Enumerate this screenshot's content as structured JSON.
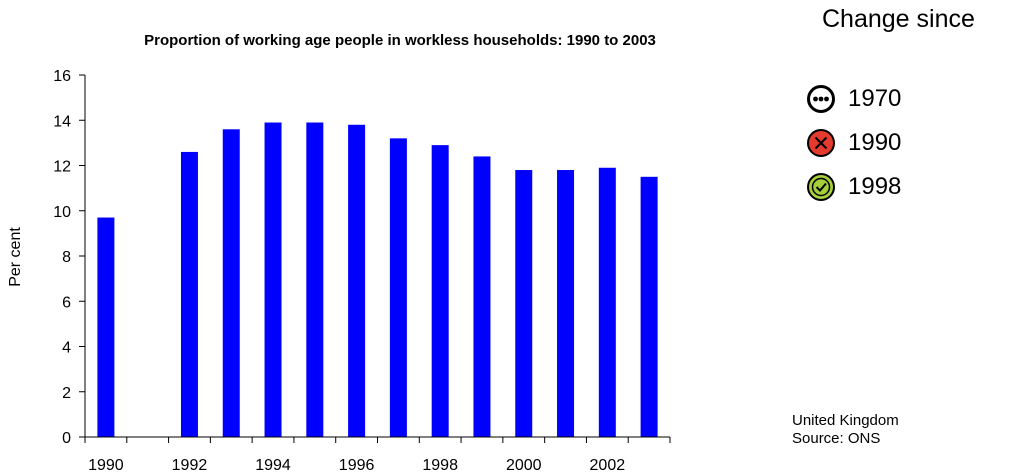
{
  "chart_data": {
    "type": "bar",
    "title": "Proportion of working age people in workless households: 1990 to 2003",
    "xlabel": "",
    "ylabel": "Per cent",
    "ylim": [
      0,
      16
    ],
    "yticks": [
      0,
      2,
      4,
      6,
      8,
      10,
      12,
      14,
      16
    ],
    "x": [
      1990,
      1991,
      1992,
      1993,
      1994,
      1995,
      1996,
      1997,
      1998,
      1999,
      2000,
      2001,
      2002,
      2003
    ],
    "xtick_labels": [
      "1990",
      "1992",
      "1994",
      "1996",
      "1998",
      "2000",
      "2002"
    ],
    "values": [
      9.7,
      null,
      12.6,
      13.6,
      13.9,
      13.9,
      13.8,
      13.2,
      12.9,
      12.4,
      11.8,
      11.8,
      11.9,
      11.5
    ],
    "bar_color": "#0000ff",
    "grid": false
  },
  "legend": {
    "title": "Change since",
    "items": [
      {
        "label": "1970",
        "icon": "ellipsis-icon",
        "color": "#ffffff"
      },
      {
        "label": "1990",
        "icon": "cross-icon",
        "color": "#e53a2e"
      },
      {
        "label": "1998",
        "icon": "check-icon",
        "color": "#a6cf3b"
      }
    ]
  },
  "footnote": {
    "region": "United Kingdom",
    "source": "Source: ONS"
  }
}
